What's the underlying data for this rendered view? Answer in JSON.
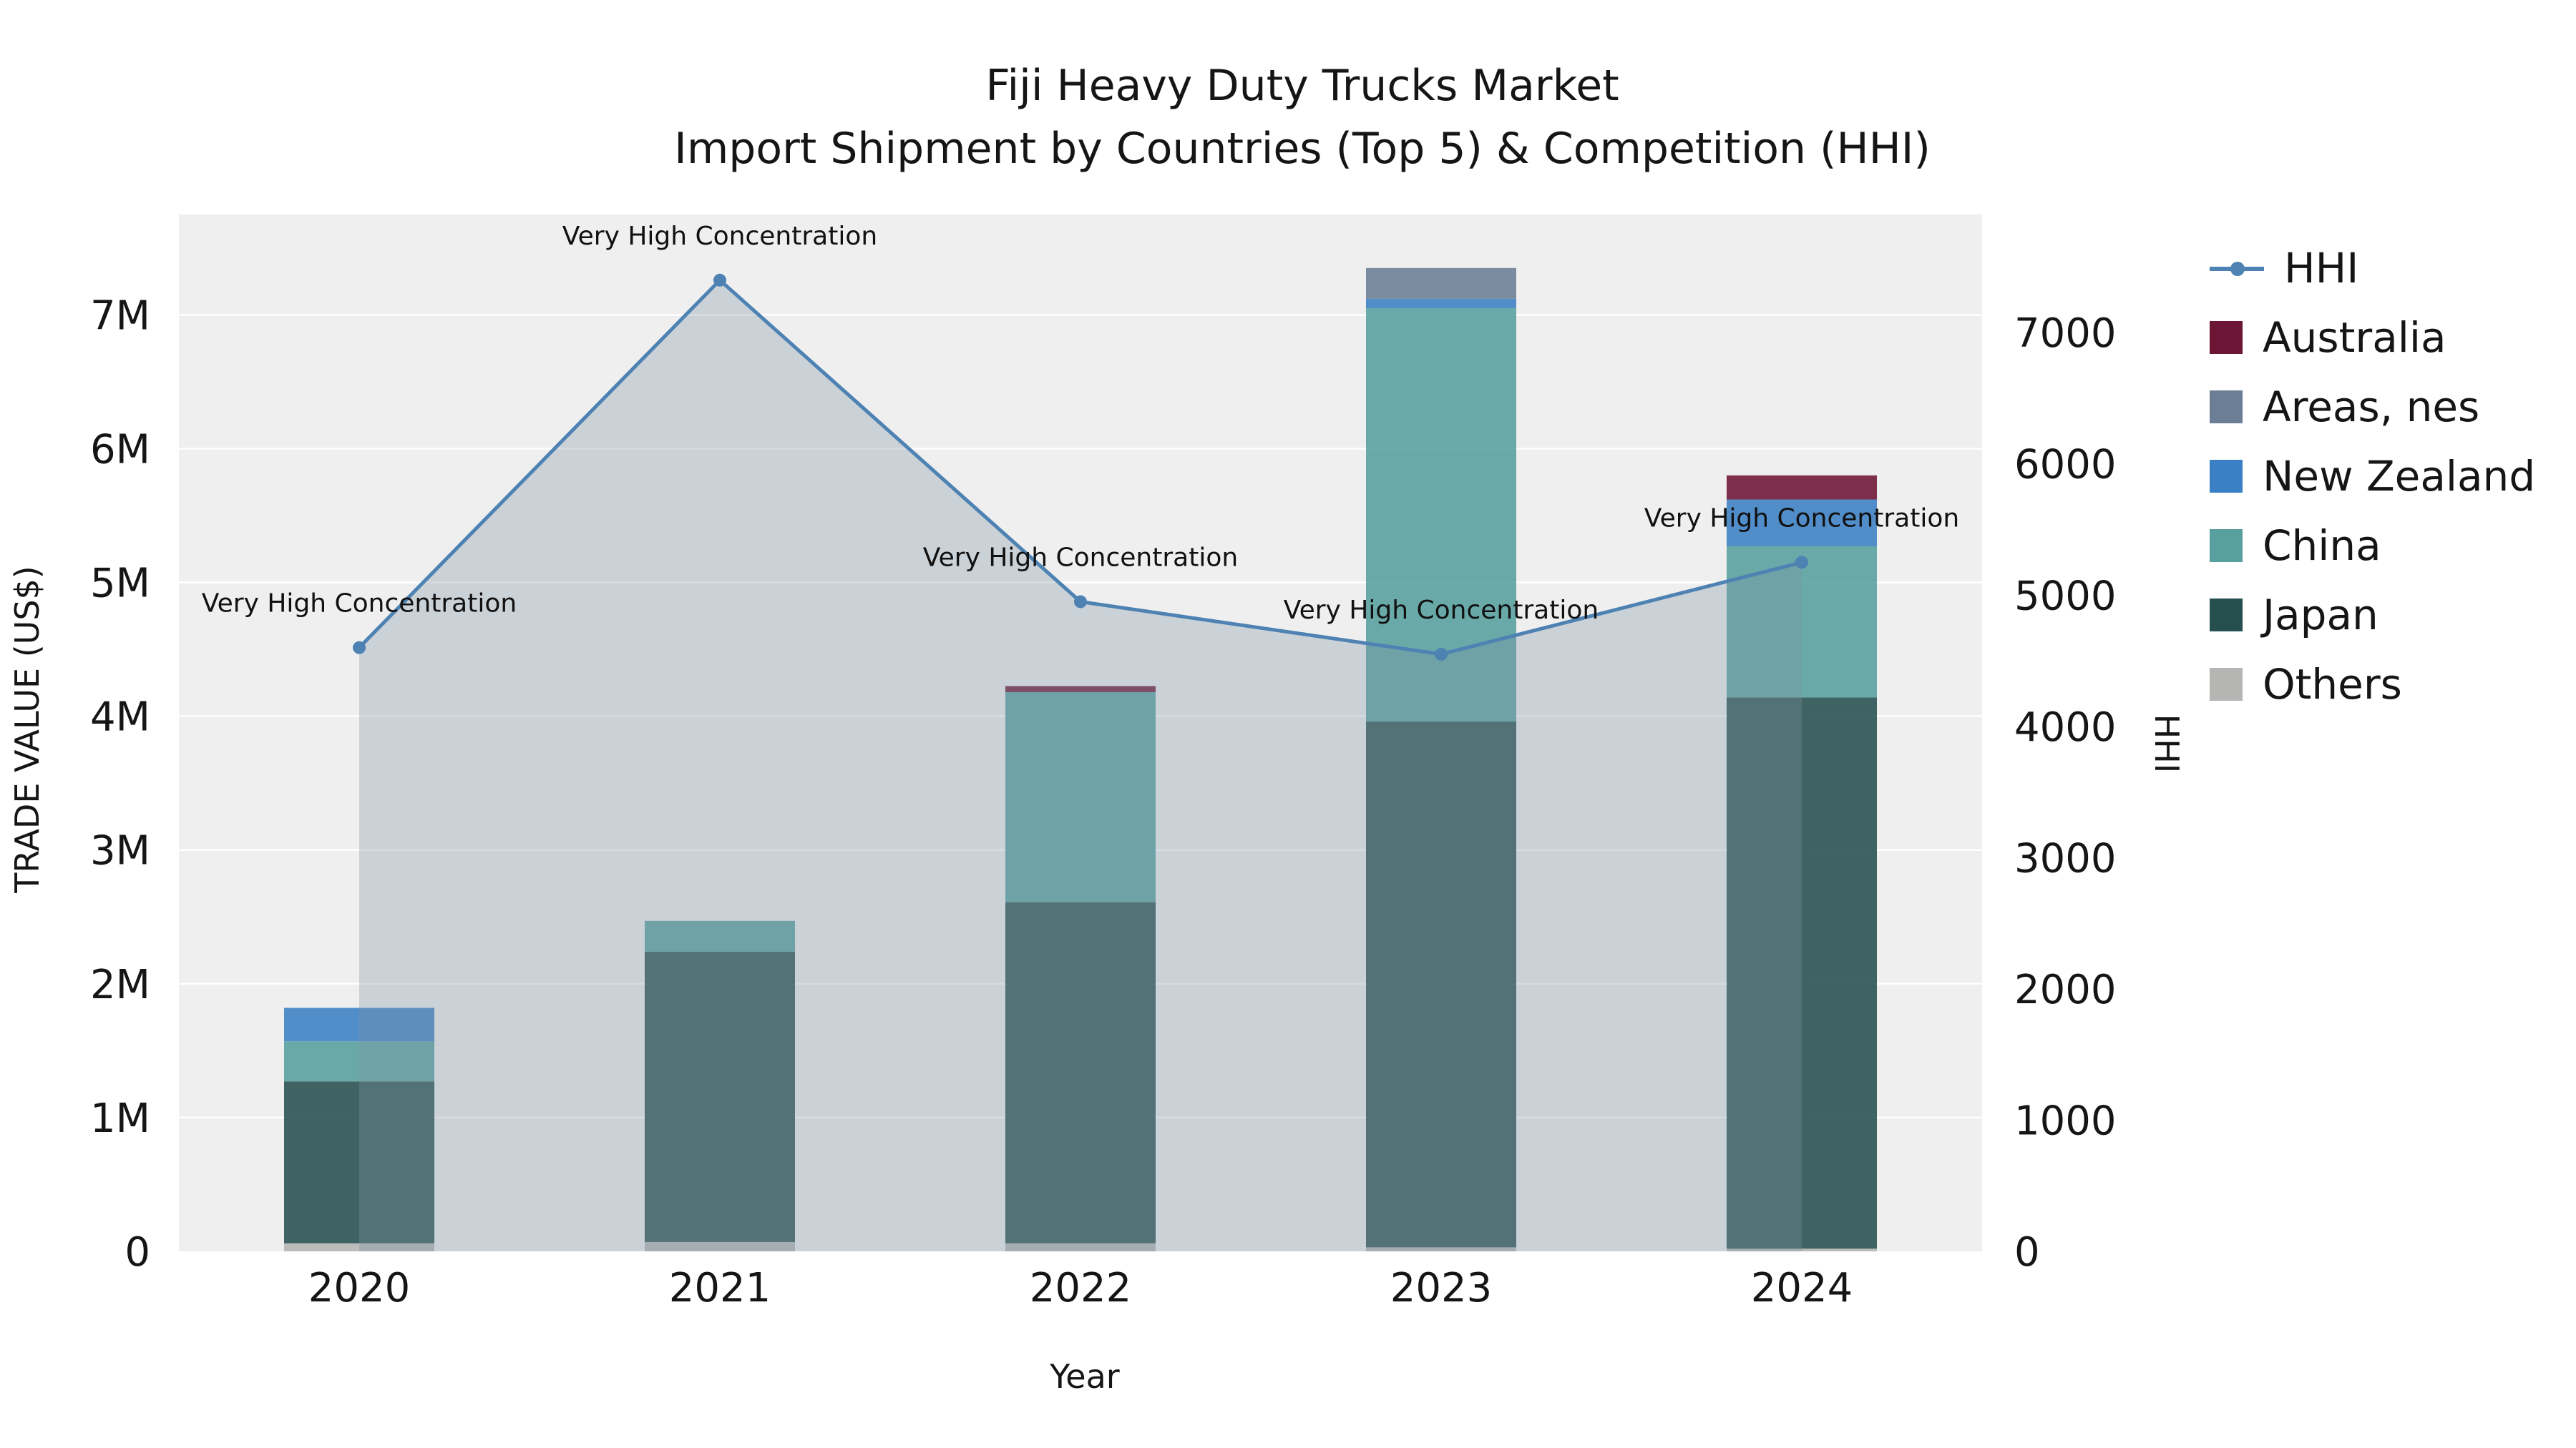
{
  "title": {
    "line1": "Fiji Heavy Duty Trucks Market",
    "line2": "Import Shipment by Countries (Top 5) & Competition (HHI)"
  },
  "axes": {
    "xlabel": "Year",
    "ylabel_left": "TRADE VALUE (US$)",
    "ylabel_right": "HHI"
  },
  "legend": [
    {
      "label": "HHI",
      "type": "line",
      "color": "#4d82b3"
    },
    {
      "label": "Australia",
      "type": "square",
      "color": "#6d1535"
    },
    {
      "label": "Areas, nes",
      "type": "square",
      "color": "#6b7e96"
    },
    {
      "label": "New Zealand",
      "type": "square",
      "color": "#3b7fc4"
    },
    {
      "label": "China",
      "type": "square",
      "color": "#57a09f"
    },
    {
      "label": "Japan",
      "type": "square",
      "color": "#25504f"
    },
    {
      "label": "Others",
      "type": "square",
      "color": "#b5b5b3"
    }
  ],
  "chart_data": {
    "type": "bar",
    "subtype": "stacked-bars-with-line",
    "title": "Fiji Heavy Duty Trucks Market",
    "subtitle": "Import Shipment by Countries (Top 5) & Competition (HHI)",
    "xlabel": "Year",
    "ylabel_left": "TRADE VALUE (US$)",
    "ylabel_right": "HHI",
    "categories": [
      "2020",
      "2021",
      "2022",
      "2023",
      "2024"
    ],
    "bar_series": [
      {
        "name": "Others",
        "color": "#b5b5b3",
        "values": [
          60000,
          70000,
          60000,
          30000,
          20000
        ]
      },
      {
        "name": "Japan",
        "color": "#25504f",
        "values": [
          1210000,
          2170000,
          2550000,
          3930000,
          4120000
        ]
      },
      {
        "name": "China",
        "color": "#57a09f",
        "values": [
          300000,
          230000,
          1570000,
          3090000,
          1130000
        ]
      },
      {
        "name": "New Zealand",
        "color": "#3b7fc4",
        "values": [
          250000,
          0,
          0,
          70000,
          350000
        ]
      },
      {
        "name": "Areas, nes",
        "color": "#6b7e96",
        "values": [
          0,
          0,
          0,
          230000,
          0
        ]
      },
      {
        "name": "Australia",
        "color": "#6d1535",
        "values": [
          0,
          0,
          45000,
          0,
          180000
        ]
      }
    ],
    "line_series": {
      "name": "HHI",
      "color": "#4d82b3",
      "area_color": "rgb(125,145,165)",
      "area_opacity": 0.32,
      "values": [
        4600,
        7400,
        4950,
        4550,
        5250
      ]
    },
    "annotations": [
      "Very High Concentration",
      "Very High Concentration",
      "Very High Concentration",
      "Very High Concentration",
      "Very High Concentration"
    ],
    "y_left": {
      "min": 0,
      "max": 7750000,
      "ticks": [
        0,
        1000000,
        2000000,
        3000000,
        4000000,
        5000000,
        6000000,
        7000000
      ],
      "tick_labels": [
        "0",
        "1M",
        "2M",
        "3M",
        "4M",
        "5M",
        "6M",
        "7M"
      ]
    },
    "y_right": {
      "min": 0,
      "max": 7900,
      "ticks": [
        0,
        1000,
        2000,
        3000,
        4000,
        5000,
        6000,
        7000
      ],
      "tick_labels": [
        "0",
        "1000",
        "2000",
        "3000",
        "4000",
        "5000",
        "6000",
        "7000"
      ]
    },
    "plot_bg": "#efefef",
    "grid_color": "#ffffff",
    "grid": true,
    "legend_position": "outside-right"
  }
}
